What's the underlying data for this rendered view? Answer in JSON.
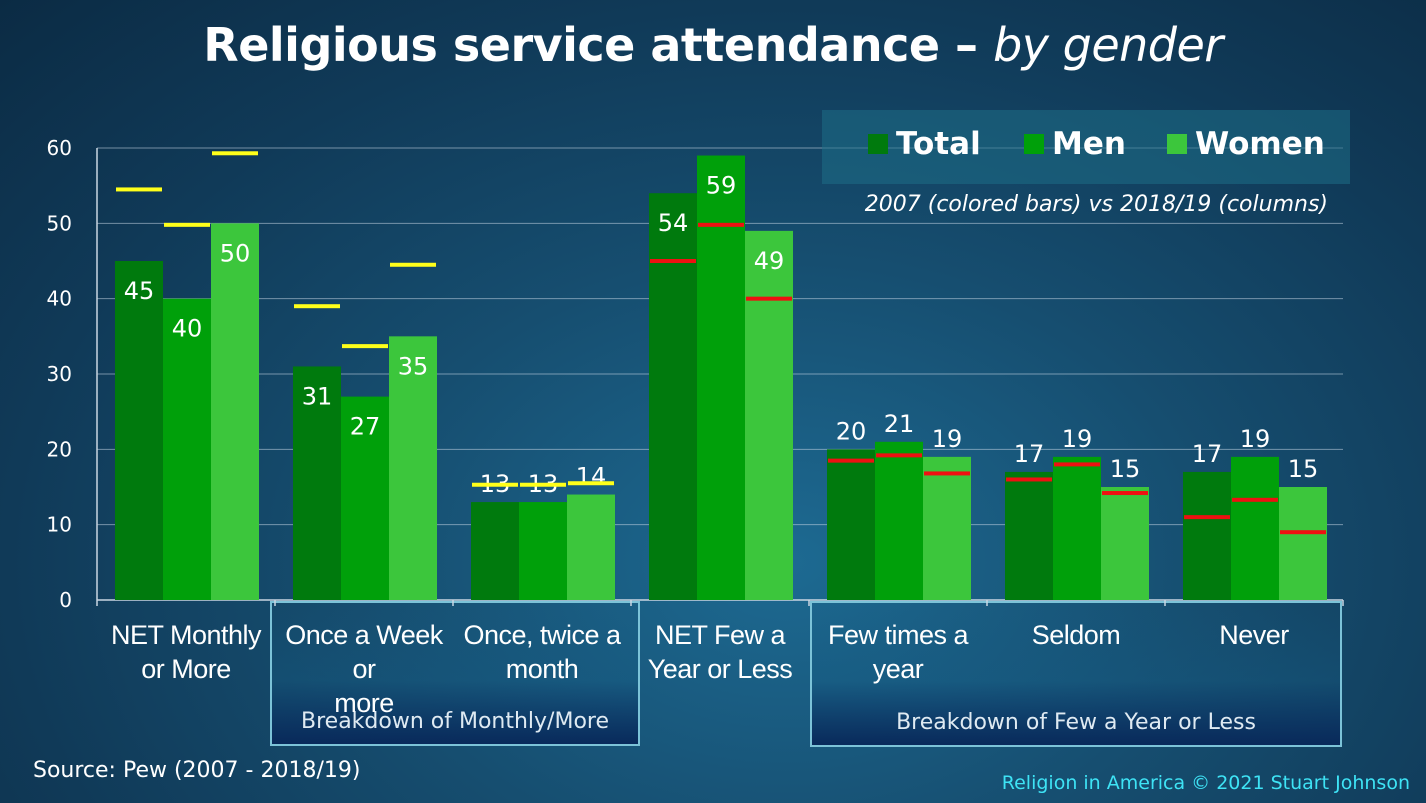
{
  "title": {
    "main": "Religious service attendance",
    "dash": " – ",
    "italic": "by gender"
  },
  "legend": {
    "items": [
      {
        "label": "Total",
        "color": "#007a0d"
      },
      {
        "label": "Men",
        "color": "#00a00a"
      },
      {
        "label": "Women",
        "color": "#3cc63c"
      }
    ],
    "note": "2007 (colored bars) vs 2018/19 (columns)"
  },
  "chart_data": {
    "type": "bar",
    "categories": [
      [
        "NET Monthly",
        "or More"
      ],
      [
        "Once a Week or",
        "more"
      ],
      [
        "Once, twice a",
        "month"
      ],
      [
        "NET Few a",
        "Year or Less"
      ],
      [
        "Few times a",
        "year"
      ],
      [
        "Seldom"
      ],
      [
        "Never"
      ]
    ],
    "series": [
      {
        "name": "Total",
        "values": [
          45,
          31,
          13,
          54,
          20,
          17,
          17
        ],
        "marker_2007": [
          54.5,
          39,
          15.3,
          45,
          18.5,
          16,
          11
        ],
        "color": "#007a0d"
      },
      {
        "name": "Men",
        "values": [
          40,
          27,
          13,
          59,
          21,
          19,
          19
        ],
        "marker_2007": [
          49.8,
          33.7,
          15.3,
          49.8,
          19.2,
          18,
          13.3
        ],
        "color": "#00a00a"
      },
      {
        "name": "Women",
        "values": [
          50,
          35,
          14,
          49,
          19,
          15,
          15
        ],
        "marker_2007": [
          59.3,
          44.5,
          15.5,
          40,
          16.8,
          14.2,
          9
        ],
        "color": "#3cc63c"
      }
    ],
    "marker_colors": {
      "high": "#ffff1a",
      "low": "#ee1111"
    },
    "ylim": [
      0,
      60
    ],
    "yticks": [
      0,
      10,
      20,
      30,
      40,
      50,
      60
    ],
    "grid": true
  },
  "groups": [
    {
      "label": "Breakdown of Monthly/More"
    },
    {
      "label": "Breakdown of Few a Year or Less"
    }
  ],
  "source": "Source: Pew (2007 - 2018/19)",
  "credit": "Religion in America © 2021 Stuart Johnson"
}
